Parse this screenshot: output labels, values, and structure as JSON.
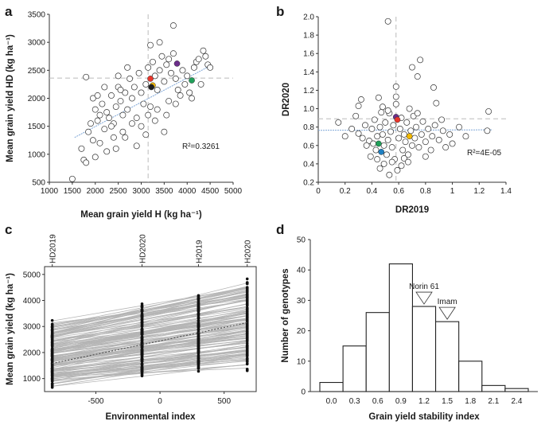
{
  "chart_data": [
    {
      "panel": "a",
      "type": "scatter",
      "xlabel": "Mean grain yield H (kg ha⁻¹)",
      "ylabel": "Mean grain yield HD (kg ha⁻¹)",
      "xlim": [
        1000,
        5000
      ],
      "ylim": [
        500,
        3500
      ],
      "xticks": [
        1000,
        1500,
        2000,
        2500,
        3000,
        3500,
        4000,
        4500,
        5000
      ],
      "yticks": [
        500,
        1000,
        1500,
        2000,
        2500,
        3000,
        3500
      ],
      "annotation": "R²=0.3261",
      "mean_x": 3150,
      "mean_y": 2360,
      "trend": {
        "x1": 1550,
        "y1": 1300,
        "x2": 4500,
        "y2": 2580
      },
      "highlighted": [
        {
          "x": 3200,
          "y": 2350,
          "color": "#e8362b"
        },
        {
          "x": 3250,
          "y": 2230,
          "color": "#f2b800"
        },
        {
          "x": 3220,
          "y": 2200,
          "color": "#1f1f1f"
        },
        {
          "x": 3780,
          "y": 2620,
          "color": "#6b2d8a"
        },
        {
          "x": 4100,
          "y": 2320,
          "color": "#21a05a"
        }
      ],
      "points": [
        [
          1500,
          560
        ],
        [
          1750,
          900
        ],
        [
          1800,
          850
        ],
        [
          1700,
          1100
        ],
        [
          1850,
          1400
        ],
        [
          1900,
          1550
        ],
        [
          1800,
          2380
        ],
        [
          1950,
          2000
        ],
        [
          2000,
          1800
        ],
        [
          2050,
          1600
        ],
        [
          2100,
          1700
        ],
        [
          2150,
          1900
        ],
        [
          2200,
          1450
        ],
        [
          2250,
          1750
        ],
        [
          2300,
          1650
        ],
        [
          2350,
          2050
        ],
        [
          2400,
          1550
        ],
        [
          2450,
          1850
        ],
        [
          2500,
          2200
        ],
        [
          2550,
          1950
        ],
        [
          2600,
          1700
        ],
        [
          2650,
          2100
        ],
        [
          2700,
          1800
        ],
        [
          2750,
          2350
        ],
        [
          2800,
          2000
        ],
        [
          2850,
          2200
        ],
        [
          2900,
          1650
        ],
        [
          2950,
          2450
        ],
        [
          3000,
          2100
        ],
        [
          3050,
          1900
        ],
        [
          3100,
          2250
        ],
        [
          3150,
          2550
        ],
        [
          3200,
          1850
        ],
        [
          3250,
          2650
        ],
        [
          3300,
          2400
        ],
        [
          3350,
          2150
        ],
        [
          3400,
          2500
        ],
        [
          3450,
          2750
        ],
        [
          3500,
          2300
        ],
        [
          3550,
          2600
        ],
        [
          3600,
          1950
        ],
        [
          3650,
          2450
        ],
        [
          3700,
          2800
        ],
        [
          3750,
          2350
        ],
        [
          3850,
          2050
        ],
        [
          3900,
          2500
        ],
        [
          3950,
          2250
        ],
        [
          4000,
          2400
        ],
        [
          4050,
          2100
        ],
        [
          4150,
          2550
        ],
        [
          4200,
          2650
        ],
        [
          4300,
          2250
        ],
        [
          4400,
          2750
        ],
        [
          4450,
          2600
        ],
        [
          3700,
          3300
        ],
        [
          3200,
          2950
        ],
        [
          3400,
          3000
        ],
        [
          2100,
          1200
        ],
        [
          2250,
          1050
        ],
        [
          2000,
          950
        ],
        [
          2600,
          1400
        ],
        [
          2400,
          1300
        ],
        [
          3000,
          1500
        ],
        [
          3300,
          1600
        ],
        [
          3500,
          1400
        ],
        [
          2900,
          1150
        ],
        [
          3100,
          1350
        ],
        [
          2700,
          2550
        ],
        [
          2500,
          2400
        ],
        [
          2200,
          2200
        ],
        [
          3600,
          2700
        ],
        [
          3800,
          2150
        ],
        [
          4250,
          2700
        ],
        [
          4350,
          2850
        ],
        [
          2800,
          1550
        ],
        [
          2350,
          1500
        ],
        [
          2450,
          1100
        ],
        [
          1950,
          1250
        ],
        [
          2650,
          1300
        ],
        [
          3350,
          1800
        ],
        [
          3550,
          1700
        ],
        [
          3750,
          1900
        ],
        [
          3150,
          1700
        ],
        [
          2550,
          2150
        ],
        [
          2050,
          2050
        ],
        [
          4500,
          2550
        ],
        [
          4100,
          2000
        ]
      ]
    },
    {
      "panel": "b",
      "type": "scatter",
      "xlabel": "DR2019",
      "ylabel": "DR2020",
      "xlim": [
        0,
        1.4
      ],
      "ylim": [
        0.2,
        2.0
      ],
      "xticks": [
        "0",
        "0.2",
        "0.4",
        "0.6",
        "0.8",
        "1",
        "1.2",
        "1.4"
      ],
      "yticks": [
        "0.2",
        "0.4",
        "0.6",
        "0.8",
        "1.0",
        "1.2",
        "1.4",
        "1.6",
        "1.8",
        "2.0"
      ],
      "annotation": "R²=4E-05",
      "mean_x": 0.58,
      "mean_y": 0.89,
      "trend": {
        "x1": 0.0,
        "y1": 0.765,
        "x2": 1.3,
        "y2": 0.77
      },
      "highlighted": [
        {
          "x": 0.58,
          "y": 0.91,
          "color": "#6b2d8a"
        },
        {
          "x": 0.59,
          "y": 0.88,
          "color": "#e8362b"
        },
        {
          "x": 0.68,
          "y": 0.7,
          "color": "#f2b800"
        },
        {
          "x": 0.45,
          "y": 0.62,
          "color": "#21a05a"
        },
        {
          "x": 0.47,
          "y": 0.53,
          "color": "#1f7fc1"
        }
      ],
      "points": [
        [
          0.52,
          1.95
        ],
        [
          0.7,
          1.45
        ],
        [
          0.74,
          1.35
        ],
        [
          0.76,
          1.53
        ],
        [
          0.58,
          1.24
        ],
        [
          0.86,
          1.23
        ],
        [
          0.58,
          1.13
        ],
        [
          0.32,
          1.1
        ],
        [
          0.3,
          1.03
        ],
        [
          0.45,
          1.12
        ],
        [
          0.48,
          1.02
        ],
        [
          0.88,
          1.06
        ],
        [
          1.27,
          0.97
        ],
        [
          0.15,
          0.85
        ],
        [
          0.2,
          0.7
        ],
        [
          0.3,
          0.73
        ],
        [
          0.35,
          0.82
        ],
        [
          0.38,
          0.65
        ],
        [
          0.4,
          0.78
        ],
        [
          0.42,
          0.88
        ],
        [
          0.43,
          0.55
        ],
        [
          0.44,
          0.7
        ],
        [
          0.46,
          0.8
        ],
        [
          0.48,
          0.72
        ],
        [
          0.49,
          0.6
        ],
        [
          0.5,
          0.85
        ],
        [
          0.51,
          0.5
        ],
        [
          0.52,
          0.66
        ],
        [
          0.53,
          0.95
        ],
        [
          0.54,
          0.75
        ],
        [
          0.55,
          0.58
        ],
        [
          0.56,
          0.82
        ],
        [
          0.57,
          0.45
        ],
        [
          0.6,
          0.68
        ],
        [
          0.61,
          0.78
        ],
        [
          0.62,
          0.9
        ],
        [
          0.63,
          0.55
        ],
        [
          0.64,
          0.72
        ],
        [
          0.65,
          0.64
        ],
        [
          0.66,
          0.85
        ],
        [
          0.67,
          0.5
        ],
        [
          0.69,
          0.76
        ],
        [
          0.7,
          0.6
        ],
        [
          0.71,
          0.92
        ],
        [
          0.72,
          0.68
        ],
        [
          0.73,
          0.8
        ],
        [
          0.75,
          0.58
        ],
        [
          0.77,
          0.72
        ],
        [
          0.78,
          0.86
        ],
        [
          0.8,
          0.64
        ],
        [
          0.82,
          0.78
        ],
        [
          0.84,
          0.55
        ],
        [
          0.85,
          0.7
        ],
        [
          0.87,
          0.82
        ],
        [
          0.9,
          0.66
        ],
        [
          0.93,
          0.76
        ],
        [
          0.95,
          0.58
        ],
        [
          0.98,
          0.72
        ],
        [
          1.0,
          0.62
        ],
        [
          1.05,
          0.8
        ],
        [
          0.36,
          0.6
        ],
        [
          0.39,
          0.48
        ],
        [
          0.41,
          0.62
        ],
        [
          0.46,
          0.35
        ],
        [
          0.49,
          0.4
        ],
        [
          0.55,
          0.42
        ],
        [
          0.59,
          0.33
        ],
        [
          0.62,
          0.38
        ],
        [
          0.64,
          0.46
        ],
        [
          0.47,
          0.96
        ],
        [
          0.52,
          0.98
        ],
        [
          0.68,
          1.0
        ],
        [
          0.58,
          1.05
        ],
        [
          0.74,
          0.95
        ],
        [
          0.28,
          0.92
        ],
        [
          0.25,
          0.78
        ],
        [
          0.33,
          0.68
        ],
        [
          0.44,
          0.45
        ],
        [
          0.53,
          0.28
        ],
        [
          0.67,
          0.42
        ],
        [
          0.8,
          0.48
        ],
        [
          0.92,
          0.88
        ],
        [
          1.1,
          0.7
        ],
        [
          1.26,
          0.76
        ]
      ]
    },
    {
      "panel": "c",
      "type": "line",
      "xlabel": "Environmental index",
      "ylabel": "Mean grain yield (kg ha⁻¹)",
      "xlim": [
        -900,
        750
      ],
      "ylim": [
        500,
        5300
      ],
      "xticks": [
        -500,
        0,
        500
      ],
      "yticks": [
        1000,
        2000,
        3000,
        4000,
        5000
      ],
      "environments": [
        {
          "name": "HD2019",
          "x": -840
        },
        {
          "name": "HD2020",
          "x": -140
        },
        {
          "name": "H2019",
          "x": 300
        },
        {
          "name": "H2020",
          "x": 680
        }
      ],
      "mean_line": {
        "x1": -840,
        "y1": 1580,
        "x2": 680,
        "y2": 3150
      },
      "line_range_at_HD2019": [
        600,
        3300
      ],
      "line_range_at_H2020": [
        1500,
        4700
      ],
      "line_count": 140
    },
    {
      "panel": "d",
      "type": "bar",
      "xlabel": "Grain yield stability index",
      "ylabel": "Number of genotypes",
      "categories": [
        "0.0",
        "0.3",
        "0.6",
        "0.9",
        "1.2",
        "1.5",
        "1.8",
        "2.1",
        "2.4"
      ],
      "values": [
        3,
        15,
        26,
        42,
        28,
        23,
        10,
        2,
        1
      ],
      "ylim": [
        0,
        50
      ],
      "yticks": [
        0,
        10,
        20,
        30,
        40,
        50
      ],
      "markers": [
        {
          "label": "Norin 61",
          "category": "1.2",
          "value": 28
        },
        {
          "label": "Imam",
          "category": "1.5",
          "value": 23
        }
      ]
    }
  ]
}
